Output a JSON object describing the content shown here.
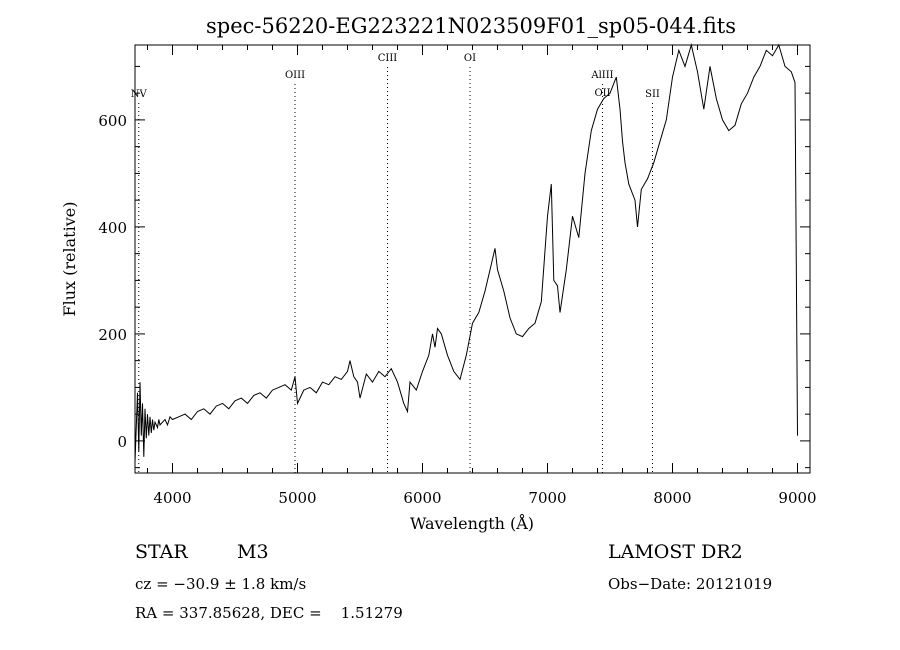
{
  "chart_data": {
    "type": "line",
    "title": "spec-56220-EG223221N023509F01_sp05-044.fits",
    "xlabel": "Wavelength (Å)",
    "ylabel": "Flux (relative)",
    "xlim": [
      3700,
      9100
    ],
    "ylim": [
      -60,
      740
    ],
    "x_ticks": [
      4000,
      5000,
      6000,
      7000,
      8000,
      9000
    ],
    "y_ticks": [
      0,
      200,
      400,
      600
    ],
    "x_tick_labels": [
      "4000",
      "5000",
      "6000",
      "7000",
      "8000",
      "9000"
    ],
    "y_tick_labels": [
      "0",
      "200",
      "400",
      "600"
    ],
    "line_markers": [
      {
        "name": "NV",
        "wavelength": 3730
      },
      {
        "name": "OIII",
        "wavelength": 4980
      },
      {
        "name": "CIII",
        "wavelength": 5720
      },
      {
        "name": "OI",
        "wavelength": 6380
      },
      {
        "name": "AlIII",
        "wavelength": 7440
      },
      {
        "name": "OII",
        "wavelength": 7440
      },
      {
        "name": "SII",
        "wavelength": 7840
      }
    ],
    "series": [
      {
        "x": [
          3700,
          3720,
          3730,
          3740,
          3750,
          3760,
          3770,
          3780,
          3790,
          3800,
          3810,
          3820,
          3830,
          3840,
          3850,
          3860,
          3870,
          3880,
          3890,
          3900,
          3920,
          3940,
          3960,
          3980,
          4000,
          4050,
          4100,
          4150,
          4200,
          4250,
          4300,
          4350,
          4400,
          4450,
          4500,
          4550,
          4600,
          4650,
          4700,
          4750,
          4800,
          4850,
          4900,
          4950,
          4980,
          5000,
          5050,
          5100,
          5150,
          5200,
          5250,
          5300,
          5350,
          5400,
          5420,
          5450,
          5480,
          5500,
          5550,
          5600,
          5650,
          5700,
          5750,
          5800,
          5850,
          5880,
          5900,
          5950,
          6000,
          6050,
          6080,
          6100,
          6120,
          6150,
          6200,
          6250,
          6300,
          6350,
          6400,
          6450,
          6500,
          6550,
          6580,
          6600,
          6650,
          6700,
          6750,
          6800,
          6850,
          6900,
          6950,
          7000,
          7030,
          7050,
          7080,
          7100,
          7150,
          7200,
          7250,
          7300,
          7350,
          7400,
          7450,
          7500,
          7550,
          7580,
          7600,
          7620,
          7650,
          7700,
          7720,
          7750,
          7800,
          7850,
          7900,
          7950,
          8000,
          8050,
          8100,
          8150,
          8200,
          8250,
          8300,
          8350,
          8400,
          8450,
          8500,
          8550,
          8600,
          8650,
          8700,
          8750,
          8800,
          8850,
          8900,
          8950,
          8980,
          9000
        ],
        "y": [
          -40,
          90,
          -20,
          110,
          10,
          70,
          -30,
          60,
          5,
          50,
          10,
          45,
          15,
          40,
          20,
          35,
          30,
          25,
          40,
          30,
          35,
          40,
          30,
          45,
          40,
          45,
          50,
          40,
          55,
          60,
          50,
          65,
          70,
          60,
          75,
          80,
          70,
          85,
          90,
          80,
          95,
          100,
          105,
          95,
          120,
          70,
          95,
          100,
          90,
          110,
          105,
          120,
          115,
          130,
          150,
          120,
          110,
          80,
          125,
          110,
          130,
          120,
          135,
          110,
          70,
          55,
          110,
          95,
          130,
          160,
          200,
          175,
          210,
          200,
          160,
          130,
          115,
          160,
          220,
          240,
          280,
          330,
          360,
          320,
          280,
          230,
          200,
          195,
          210,
          220,
          260,
          420,
          480,
          300,
          290,
          240,
          320,
          420,
          380,
          500,
          580,
          620,
          640,
          650,
          680,
          620,
          560,
          520,
          480,
          450,
          400,
          470,
          490,
          520,
          560,
          600,
          680,
          730,
          700,
          740,
          690,
          620,
          700,
          640,
          600,
          580,
          590,
          630,
          650,
          680,
          700,
          730,
          720,
          740,
          700,
          690,
          670,
          10
        ]
      }
    ]
  },
  "info": {
    "object_type": "STAR",
    "subclass": "M3",
    "survey": "LAMOST DR2",
    "redshift_text": "cz = −30.9 ± 1.8 km/s",
    "obs_date_text": "Obs−Date: 20121019",
    "coords_text": "RA = 337.85628, DEC =    1.51279"
  }
}
